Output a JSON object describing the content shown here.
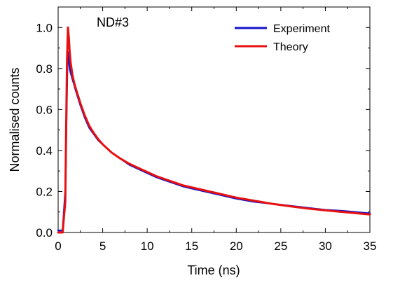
{
  "chart_data": {
    "type": "line",
    "title": "",
    "annotation": "ND#3",
    "xlabel": "Time (ns)",
    "ylabel": "Normalised counts",
    "xlim": [
      0,
      35
    ],
    "ylim": [
      0,
      1.1
    ],
    "xticks": [
      0,
      5,
      10,
      15,
      20,
      25,
      30,
      35
    ],
    "xtick_labels": [
      "0",
      "5",
      "10",
      "15",
      "20",
      "25",
      "30",
      "35"
    ],
    "yticks": [
      0.0,
      0.2,
      0.4,
      0.6,
      0.8,
      1.0
    ],
    "ytick_labels": [
      "0.0",
      "0.2",
      "0.4",
      "0.6",
      "0.8",
      "1.0"
    ],
    "grid": false,
    "legend_position": "top-right",
    "series": [
      {
        "name": "Experiment",
        "color": "#1414c8",
        "x": [
          0.0,
          0.5,
          0.8,
          0.9,
          1.0,
          1.05,
          1.1,
          1.2,
          1.3,
          1.4,
          1.6,
          1.8,
          2.0,
          2.5,
          3.0,
          3.5,
          4.0,
          4.5,
          5.0,
          6.0,
          7.0,
          8.0,
          9.0,
          10.0,
          11.0,
          12.0,
          13.0,
          14.0,
          15.0,
          16.0,
          17.0,
          18.0,
          19.0,
          20.0,
          22.0,
          24.0,
          26.0,
          28.0,
          30.0,
          32.0,
          34.0,
          35.0
        ],
        "y": [
          0.01,
          0.01,
          0.2,
          0.45,
          0.72,
          0.83,
          0.88,
          0.84,
          0.8,
          0.78,
          0.75,
          0.72,
          0.69,
          0.62,
          0.56,
          0.51,
          0.48,
          0.45,
          0.43,
          0.39,
          0.36,
          0.33,
          0.31,
          0.29,
          0.27,
          0.255,
          0.24,
          0.225,
          0.215,
          0.205,
          0.195,
          0.185,
          0.175,
          0.165,
          0.15,
          0.14,
          0.13,
          0.12,
          0.11,
          0.105,
          0.097,
          0.093
        ]
      },
      {
        "name": "Theory",
        "color": "#e81010",
        "x": [
          0.0,
          0.5,
          0.8,
          0.9,
          1.0,
          1.1,
          1.2,
          1.3,
          1.4,
          1.6,
          1.8,
          2.0,
          2.5,
          3.0,
          3.5,
          4.0,
          4.5,
          5.0,
          6.0,
          7.0,
          8.0,
          9.0,
          10.0,
          11.0,
          12.0,
          13.0,
          14.0,
          15.0,
          16.0,
          17.0,
          18.0,
          19.0,
          20.0,
          22.0,
          24.0,
          26.0,
          28.0,
          30.0,
          32.0,
          34.0,
          35.0
        ],
        "y": [
          0.0,
          0.0,
          0.15,
          0.5,
          0.85,
          1.0,
          0.95,
          0.88,
          0.83,
          0.77,
          0.73,
          0.7,
          0.63,
          0.57,
          0.52,
          0.485,
          0.455,
          0.43,
          0.39,
          0.36,
          0.335,
          0.315,
          0.295,
          0.275,
          0.26,
          0.245,
          0.23,
          0.22,
          0.21,
          0.2,
          0.19,
          0.18,
          0.17,
          0.155,
          0.14,
          0.128,
          0.117,
          0.108,
          0.1,
          0.092,
          0.088
        ]
      }
    ]
  }
}
